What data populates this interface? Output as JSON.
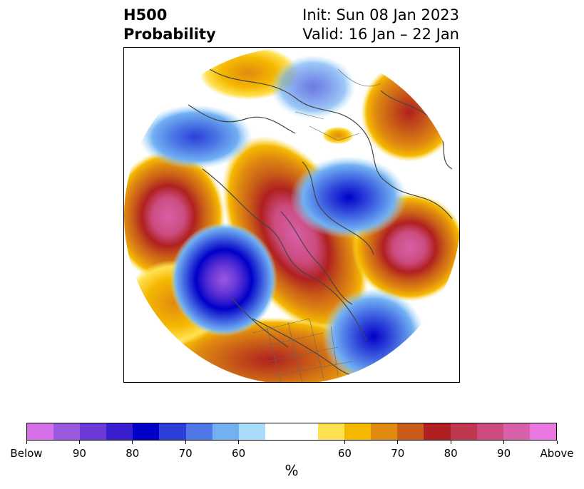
{
  "header": {
    "title_line1": "H500",
    "title_line2": "Probability",
    "init": "Init: Sun 08 Jan 2023",
    "valid": "Valid: 16 Jan – 22 Jan"
  },
  "colorbar": {
    "colors": [
      "#d670e8",
      "#9b58e0",
      "#6d3ad8",
      "#3a1fd0",
      "#0000c8",
      "#2b3fd8",
      "#4d78e6",
      "#72b0f2",
      "#a9dcfa",
      "#ffffff",
      "#ffffff",
      "#ffe050",
      "#f5b800",
      "#e08a10",
      "#c85c18",
      "#b02020",
      "#c03850",
      "#cc4c80",
      "#d860a8",
      "#e878e0"
    ],
    "tick_labels": [
      "Below",
      "90",
      "80",
      "70",
      "60",
      "60",
      "70",
      "80",
      "90",
      "Above"
    ],
    "label": "%"
  }
}
